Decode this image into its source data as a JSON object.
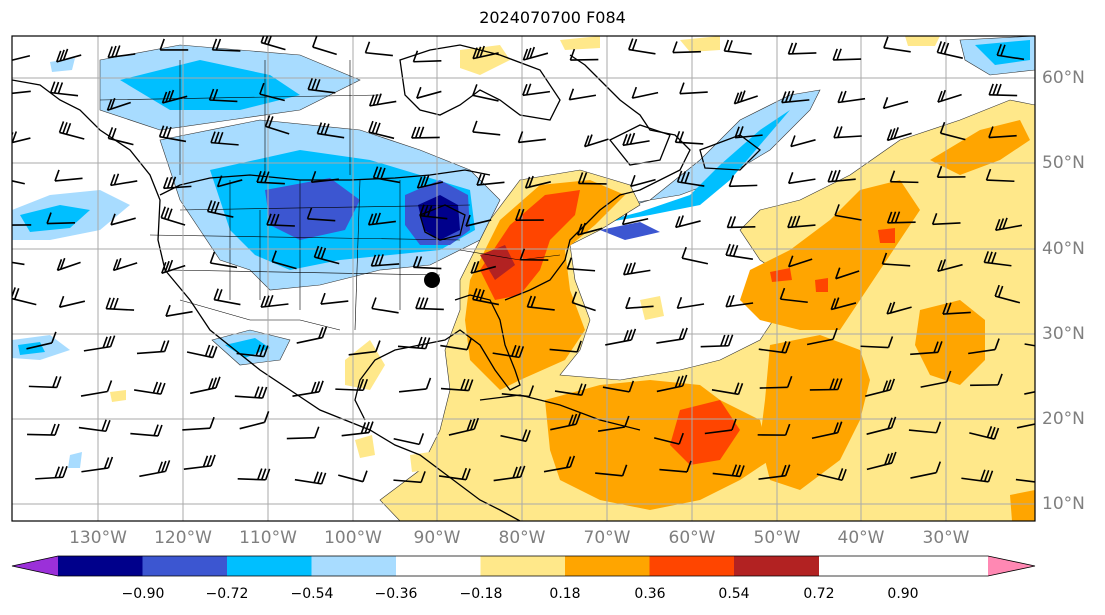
{
  "title": "2024070700 F084",
  "map": {
    "lon_labels": [
      "130°W",
      "120°W",
      "110°W",
      "100°W",
      "90°W",
      "80°W",
      "70°W",
      "60°W",
      "50°W",
      "40°W",
      "30°W"
    ],
    "lat_labels": [
      "60°N",
      "50°N",
      "40°N",
      "30°N",
      "20°N",
      "10°N"
    ],
    "lon_range": [
      -138,
      -17
    ],
    "lat_range": [
      8,
      65
    ]
  },
  "colorbar": {
    "ticks": [
      "−0.90",
      "−0.72",
      "−0.54",
      "−0.36",
      "−0.18",
      "0.18",
      "0.36",
      "0.54",
      "0.72",
      "0.90"
    ],
    "colors": [
      "#9b30d9",
      "#00008b",
      "#3c56d1",
      "#00bfff",
      "#a8dcff",
      "#ffffff",
      "#ffe88a",
      "#ffa500",
      "#ff4500",
      "#b22222",
      "#ff88b3"
    ]
  },
  "marker": {
    "lon": -90,
    "lat": 35
  }
}
